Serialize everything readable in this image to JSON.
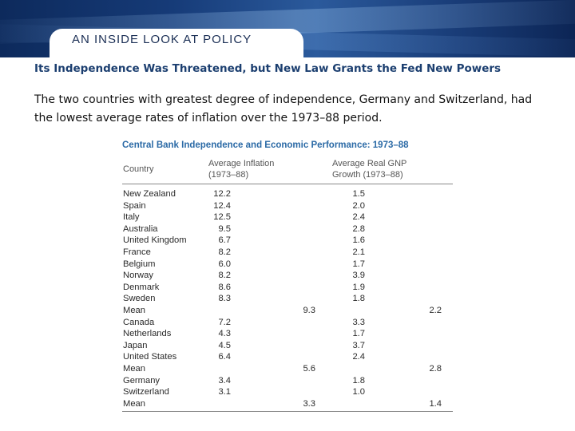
{
  "header": {
    "title": "AN INSIDE LOOK AT POLICY",
    "colors": {
      "banner_dark": "#0d2a5c",
      "banner_light": "#2b5a9c",
      "title_text": "#1b2f55"
    }
  },
  "subtitle": "Its Independence Was Threatened, but New Law Grants the Fed New Powers",
  "body_text": "The two countries with greatest degree of independence, Germany and Switzerland, had the lowest average rates of inflation over the 1973–88 period.",
  "table": {
    "caption": "Central Bank Independence and Economic Performance: 1973–88",
    "caption_color": "#2b6aa6",
    "headers": {
      "country": "Country",
      "inflation_line1": "Average Inflation",
      "inflation_line2": "(1973–88)",
      "gnp_line1": "Average Real GNP",
      "gnp_line2": "Growth (1973–88)"
    },
    "rows": [
      {
        "country": "New Zealand",
        "inflation": "12.2",
        "gnp": "1.5"
      },
      {
        "country": "Spain",
        "inflation": "12.4",
        "gnp": "2.0"
      },
      {
        "country": "Italy",
        "inflation": "12.5",
        "gnp": "2.4"
      },
      {
        "country": "Australia",
        "inflation": "9.5",
        "gnp": "2.8"
      },
      {
        "country": "United Kingdom",
        "inflation": "6.7",
        "gnp": "1.6"
      },
      {
        "country": "France",
        "inflation": "8.2",
        "gnp": "2.1"
      },
      {
        "country": "Belgium",
        "inflation": "6.0",
        "gnp": "1.7"
      },
      {
        "country": "Norway",
        "inflation": "8.2",
        "gnp": "3.9"
      },
      {
        "country": "Denmark",
        "inflation": "8.6",
        "gnp": "1.9"
      },
      {
        "country": "Sweden",
        "inflation": "8.3",
        "gnp": "1.8"
      },
      {
        "country": "Mean",
        "mean_inflation": "9.3",
        "mean_gnp": "2.2"
      },
      {
        "country": "Canada",
        "inflation": "7.2",
        "gnp": "3.3"
      },
      {
        "country": "Netherlands",
        "inflation": "4.3",
        "gnp": "1.7"
      },
      {
        "country": "Japan",
        "inflation": "4.5",
        "gnp": "3.7"
      },
      {
        "country": "United States",
        "inflation": "6.4",
        "gnp": "2.4"
      },
      {
        "country": "Mean",
        "mean_inflation": "5.6",
        "mean_gnp": "2.8"
      },
      {
        "country": "Germany",
        "inflation": "3.4",
        "gnp": "1.8"
      },
      {
        "country": "Switzerland",
        "inflation": "3.1",
        "gnp": "1.0"
      },
      {
        "country": "Mean",
        "mean_inflation": "3.3",
        "mean_gnp": "1.4"
      }
    ]
  }
}
